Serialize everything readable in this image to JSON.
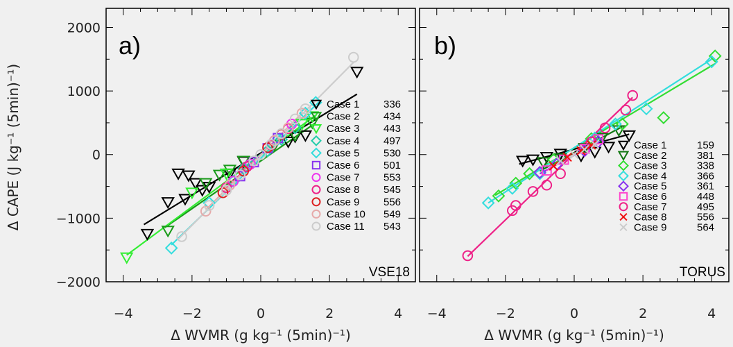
{
  "chart_data": [
    {
      "type": "scatter",
      "panel_label": "a)",
      "dataset_label": "VSE18",
      "xlabel": "Δ WVMR (g kg⁻¹ (5min)⁻¹)",
      "ylabel": "Δ CAPE (J kg⁻¹ (5min)⁻¹)",
      "xlim": [
        -4.5,
        4.5
      ],
      "ylim": [
        -2000,
        2300
      ],
      "xticks": [
        -4,
        -2,
        0,
        2,
        4
      ],
      "yticks": [
        -2000,
        -1000,
        0,
        1000,
        2000
      ],
      "series": [
        {
          "name": "Case 1",
          "count": "336",
          "color": "#000000",
          "marker": "triangle-down",
          "points": [
            [
              -3.3,
              -1250
            ],
            [
              -2.4,
              -300
            ],
            [
              -2.1,
              -330
            ],
            [
              -1.9,
              -450
            ],
            [
              -2.7,
              -750
            ],
            [
              -2.2,
              -700
            ],
            [
              -1.7,
              -560
            ],
            [
              -1.5,
              -510
            ],
            [
              -0.9,
              -300
            ],
            [
              -0.5,
              -110
            ],
            [
              0.8,
              200
            ],
            [
              1.0,
              280
            ],
            [
              1.3,
              300
            ],
            [
              2.8,
              1300
            ]
          ],
          "fit": [
            [
              -3.4,
              -1100
            ],
            [
              2.8,
              950
            ]
          ]
        },
        {
          "name": "Case 2",
          "count": "434",
          "color": "#1a9a1a",
          "marker": "triangle-down",
          "points": [
            [
              -2.7,
              -1200
            ],
            [
              -1.6,
              -450
            ],
            [
              -1.2,
              -320
            ],
            [
              -0.9,
              -240
            ],
            [
              -0.5,
              -100
            ],
            [
              0.4,
              150
            ],
            [
              1.0,
              300
            ],
            [
              1.5,
              500
            ]
          ],
          "fit": [
            [
              -2.8,
              -1150
            ],
            [
              1.6,
              500
            ]
          ]
        },
        {
          "name": "Case 3",
          "count": "443",
          "color": "#33ee33",
          "marker": "triangle-down",
          "points": [
            [
              -3.9,
              -1620
            ],
            [
              -2.0,
              -600
            ],
            [
              -1.0,
              -300
            ],
            [
              1.2,
              480
            ],
            [
              1.5,
              600
            ]
          ],
          "fit": [
            [
              -3.9,
              -1580
            ],
            [
              1.6,
              620
            ]
          ]
        },
        {
          "name": "Case 4",
          "count": "497",
          "color": "#22ccaa",
          "marker": "diamond",
          "points": [
            [
              -0.5,
              -220
            ],
            [
              0.2,
              60
            ],
            [
              0.6,
              240
            ],
            [
              1.0,
              420
            ]
          ],
          "fit": [
            [
              -0.6,
              -250
            ],
            [
              1.0,
              430
            ]
          ]
        },
        {
          "name": "Case 5",
          "count": "530",
          "color": "#33dddd",
          "marker": "diamond",
          "points": [
            [
              -2.6,
              -1470
            ],
            [
              -1.5,
              -760
            ],
            [
              -0.8,
              -420
            ],
            [
              0.5,
              240
            ],
            [
              1.3,
              650
            ],
            [
              1.6,
              820
            ]
          ],
          "fit": [
            [
              -2.6,
              -1420
            ],
            [
              1.7,
              830
            ]
          ]
        },
        {
          "name": "Case 6",
          "count": "501",
          "color": "#8833ee",
          "marker": "square",
          "points": [
            [
              -0.6,
              -340
            ],
            [
              -0.2,
              -120
            ],
            [
              0.2,
              100
            ],
            [
              0.5,
              260
            ]
          ],
          "fit": [
            [
              -0.7,
              -380
            ],
            [
              0.6,
              310
            ]
          ]
        },
        {
          "name": "Case 7",
          "count": "553",
          "color": "#ee33ee",
          "marker": "circle",
          "points": [
            [
              -0.8,
              -420
            ],
            [
              -0.3,
              -150
            ],
            [
              0.4,
              220
            ],
            [
              0.9,
              480
            ]
          ],
          "fit": [
            [
              -0.8,
              -430
            ],
            [
              0.9,
              480
            ]
          ]
        },
        {
          "name": "Case 8",
          "count": "545",
          "color": "#ee2288",
          "marker": "circle",
          "points": [
            [
              -1.0,
              -520
            ],
            [
              -0.4,
              -190
            ],
            [
              0.3,
              150
            ],
            [
              0.8,
              410
            ]
          ],
          "fit": [
            [
              -1.0,
              -520
            ],
            [
              0.9,
              460
            ]
          ]
        },
        {
          "name": "Case 9",
          "count": "556",
          "color": "#dd2222",
          "marker": "circle",
          "points": [
            [
              -1.1,
              -600
            ],
            [
              -0.5,
              -260
            ],
            [
              0.2,
              110
            ],
            [
              0.6,
              320
            ]
          ],
          "fit": [
            [
              -1.1,
              -600
            ],
            [
              0.7,
              360
            ]
          ]
        },
        {
          "name": "Case 10",
          "count": "549",
          "color": "#e6aaaa",
          "marker": "circle",
          "points": [
            [
              -1.6,
              -890
            ],
            [
              -0.9,
              -480
            ],
            [
              0.4,
              220
            ],
            [
              0.8,
              420
            ],
            [
              1.2,
              650
            ]
          ],
          "fit": [
            [
              -1.6,
              -870
            ],
            [
              1.2,
              650
            ]
          ]
        },
        {
          "name": "Case 11",
          "count": "543",
          "color": "#cccccc",
          "marker": "circle",
          "points": [
            [
              -2.3,
              -1290
            ],
            [
              -1.5,
              -800
            ],
            [
              -1.0,
              -560
            ],
            [
              -0.6,
              -320
            ],
            [
              -0.2,
              -100
            ],
            [
              0.0,
              0
            ],
            [
              0.3,
              160
            ],
            [
              0.6,
              330
            ],
            [
              1.0,
              560
            ],
            [
              1.3,
              720
            ],
            [
              2.7,
              1530
            ]
          ],
          "fit": [
            [
              -2.4,
              -1330
            ],
            [
              2.7,
              1450
            ]
          ]
        }
      ]
    },
    {
      "type": "scatter",
      "panel_label": "b)",
      "dataset_label": "TORUS",
      "xlabel": "Δ WVMR (g kg⁻¹ (5min)⁻¹)",
      "ylabel": "",
      "xlim": [
        -4.5,
        4.5
      ],
      "ylim": [
        -2000,
        2300
      ],
      "xticks": [
        -4,
        -2,
        0,
        2,
        4
      ],
      "yticks": [
        -2000,
        -1000,
        0,
        1000,
        2000
      ],
      "series": [
        {
          "name": "Case 1",
          "count": "159",
          "color": "#000000",
          "marker": "triangle-down",
          "points": [
            [
              -1.5,
              -100
            ],
            [
              -1.2,
              -80
            ],
            [
              -0.8,
              -40
            ],
            [
              -0.4,
              10
            ],
            [
              0.2,
              -20
            ],
            [
              0.6,
              40
            ],
            [
              1.0,
              120
            ],
            [
              1.6,
              300
            ]
          ],
          "fit": [
            [
              -1.6,
              -150
            ],
            [
              1.6,
              320
            ]
          ]
        },
        {
          "name": "Case 2",
          "count": "381",
          "color": "#117711",
          "marker": "triangle-down",
          "points": [
            [
              -0.9,
              -120
            ],
            [
              -0.4,
              -60
            ],
            [
              0.3,
              100
            ],
            [
              0.8,
              260
            ],
            [
              1.3,
              380
            ]
          ],
          "fit": [
            [
              -1.0,
              -260
            ],
            [
              1.4,
              440
            ]
          ]
        },
        {
          "name": "Case 3",
          "count": "338",
          "color": "#33dd33",
          "marker": "diamond",
          "points": [
            [
              -2.2,
              -650
            ],
            [
              -1.7,
              -450
            ],
            [
              -1.3,
              -300
            ],
            [
              -0.6,
              -80
            ],
            [
              0.5,
              250
            ],
            [
              1.4,
              480
            ],
            [
              2.6,
              580
            ],
            [
              4.1,
              1550
            ]
          ],
          "fit": [
            [
              -2.3,
              -640
            ],
            [
              4.1,
              1430
            ]
          ]
        },
        {
          "name": "Case 4",
          "count": "366",
          "color": "#33dddd",
          "marker": "diamond",
          "points": [
            [
              -2.5,
              -760
            ],
            [
              -1.8,
              -530
            ],
            [
              -1.0,
              -300
            ],
            [
              0.6,
              260
            ],
            [
              1.2,
              480
            ],
            [
              2.1,
              720
            ],
            [
              4.0,
              1460
            ]
          ],
          "fit": [
            [
              -2.5,
              -760
            ],
            [
              4.0,
              1500
            ]
          ]
        },
        {
          "name": "Case 5",
          "count": "361",
          "color": "#8833ee",
          "marker": "diamond",
          "points": [
            [
              -1.0,
              -280
            ],
            [
              -0.5,
              -150
            ],
            [
              0.3,
              60
            ],
            [
              0.7,
              200
            ]
          ],
          "fit": [
            [
              -1.0,
              -300
            ],
            [
              0.8,
              220
            ]
          ]
        },
        {
          "name": "Case 6",
          "count": "448",
          "color": "#ff44cc",
          "marker": "square",
          "points": [
            [
              -0.8,
              -250
            ],
            [
              -0.3,
              -80
            ],
            [
              0.3,
              90
            ],
            [
              0.7,
              240
            ]
          ],
          "fit": [
            [
              -0.8,
              -250
            ],
            [
              0.8,
              260
            ]
          ]
        },
        {
          "name": "Case 7",
          "count": "495",
          "color": "#ee2288",
          "marker": "circle",
          "points": [
            [
              -3.1,
              -1590
            ],
            [
              -1.8,
              -880
            ],
            [
              -1.7,
              -800
            ],
            [
              -1.2,
              -580
            ],
            [
              -0.8,
              -480
            ],
            [
              -0.4,
              -300
            ],
            [
              0.5,
              200
            ],
            [
              0.9,
              420
            ],
            [
              1.5,
              700
            ],
            [
              1.7,
              930
            ]
          ],
          "fit": [
            [
              -3.1,
              -1600
            ],
            [
              1.7,
              900
            ]
          ]
        },
        {
          "name": "Case 8",
          "count": "556",
          "color": "#ee1111",
          "marker": "x",
          "points": [
            [
              -0.6,
              -180
            ],
            [
              -0.2,
              -40
            ],
            [
              0.2,
              60
            ],
            [
              0.5,
              150
            ]
          ],
          "fit": [
            [
              -0.6,
              -180
            ],
            [
              0.5,
              170
            ]
          ]
        },
        {
          "name": "Case 9",
          "count": "564",
          "color": "#cccccc",
          "marker": "x",
          "points": [
            [
              -0.4,
              -100
            ],
            [
              0.0,
              0
            ],
            [
              0.3,
              80
            ],
            [
              0.6,
              160
            ]
          ],
          "fit": [
            [
              -0.4,
              -110
            ],
            [
              0.6,
              170
            ]
          ]
        }
      ]
    }
  ]
}
